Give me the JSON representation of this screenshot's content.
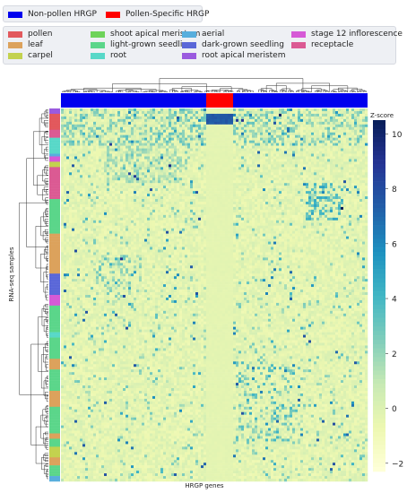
{
  "top_legend": [
    {
      "label": "Non-pollen HRGP",
      "color": "#0000ee"
    },
    {
      "label": "Pollen-Specific HRGP",
      "color": "#ff0000"
    }
  ],
  "tissue_legend": [
    {
      "label": "pollen",
      "color": "#e2595d"
    },
    {
      "label": "leaf",
      "color": "#dca25c"
    },
    {
      "label": "carpel",
      "color": "#c3d24f"
    },
    {
      "label": "shoot apical meristem",
      "color": "#6ed35a"
    },
    {
      "label": "light-grown seedling",
      "color": "#5bd68a"
    },
    {
      "label": "root",
      "color": "#58d8c8"
    },
    {
      "label": "aerial",
      "color": "#58aedd"
    },
    {
      "label": "dark-grown seedling",
      "color": "#5a67d8"
    },
    {
      "label": "root apical meristem",
      "color": "#9a5adf"
    },
    {
      "label": "stage 12 inflorescence",
      "color": "#d65ad6"
    },
    {
      "label": "receptacle",
      "color": "#db5a93"
    }
  ],
  "chart_data": {
    "type": "heatmap",
    "xlabel": "HRGP genes",
    "ylabel": "RNA-seq samples",
    "colorbar_label": "Z-score",
    "colorbar_ticks": [
      "10",
      "8",
      "6",
      "4",
      "2",
      "0",
      "−2"
    ],
    "colorbar_values": [
      10,
      8,
      6,
      4,
      2,
      0,
      -2
    ],
    "zlim": [
      -2.3,
      10.5
    ],
    "colormap": "YlGnBu",
    "column_groups": [
      {
        "name": "Non-pollen HRGP",
        "color": "#0000ee"
      },
      {
        "name": "Pollen-Specific HRGP",
        "color": "#ff0000"
      },
      {
        "name": "Non-pollen HRGP",
        "color": "#0000ee"
      }
    ],
    "row_tissue_blocks": [
      "root apical meristem",
      "pollen",
      "receptacle",
      "root",
      "aerial",
      "stage 12 inflorescence",
      "carpel",
      "receptacle",
      "light-grown seedling",
      "leaf",
      "dark-grown seedling",
      "stage 12 inflorescence",
      "light-grown seedling",
      "root",
      "light-grown seedling",
      "leaf",
      "light-grown seedling",
      "leaf",
      "light-grown seedling",
      "leaf",
      "light-grown seedling",
      "carpel",
      "leaf",
      "light-grown seedling",
      "aerial",
      "shoot apical meristem",
      "light-grown seedling"
    ]
  }
}
